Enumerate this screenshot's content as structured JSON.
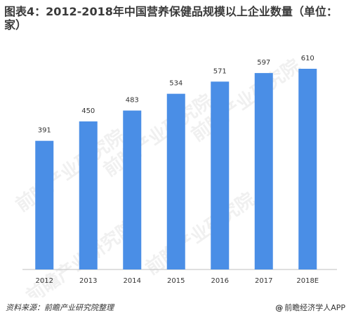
{
  "title": "图表4：2012-2018年中国营养保健品规模以上企业数量（单位：家）",
  "source": "资料来源：前瞻产业研究院整理",
  "brand": "前瞻经济学人APP",
  "brand_icon": "at-icon",
  "watermark": "前瞻产业研究院",
  "colors": {
    "bar": "#4a8ee6",
    "axis": "#bfbfbf",
    "text": "#333333",
    "title": "#3a3a3a"
  },
  "chart_data": {
    "type": "bar",
    "title": "图表4：2012-2018年中国营养保健品规模以上企业数量（单位：家）",
    "xlabel": "",
    "ylabel": "",
    "categories": [
      "2012",
      "2013",
      "2014",
      "2015",
      "2016",
      "2017",
      "2018E"
    ],
    "values": [
      391,
      450,
      483,
      534,
      571,
      597,
      610
    ],
    "ylim": [
      0,
      650
    ],
    "grid": false,
    "legend": "none",
    "data_labels": true
  }
}
